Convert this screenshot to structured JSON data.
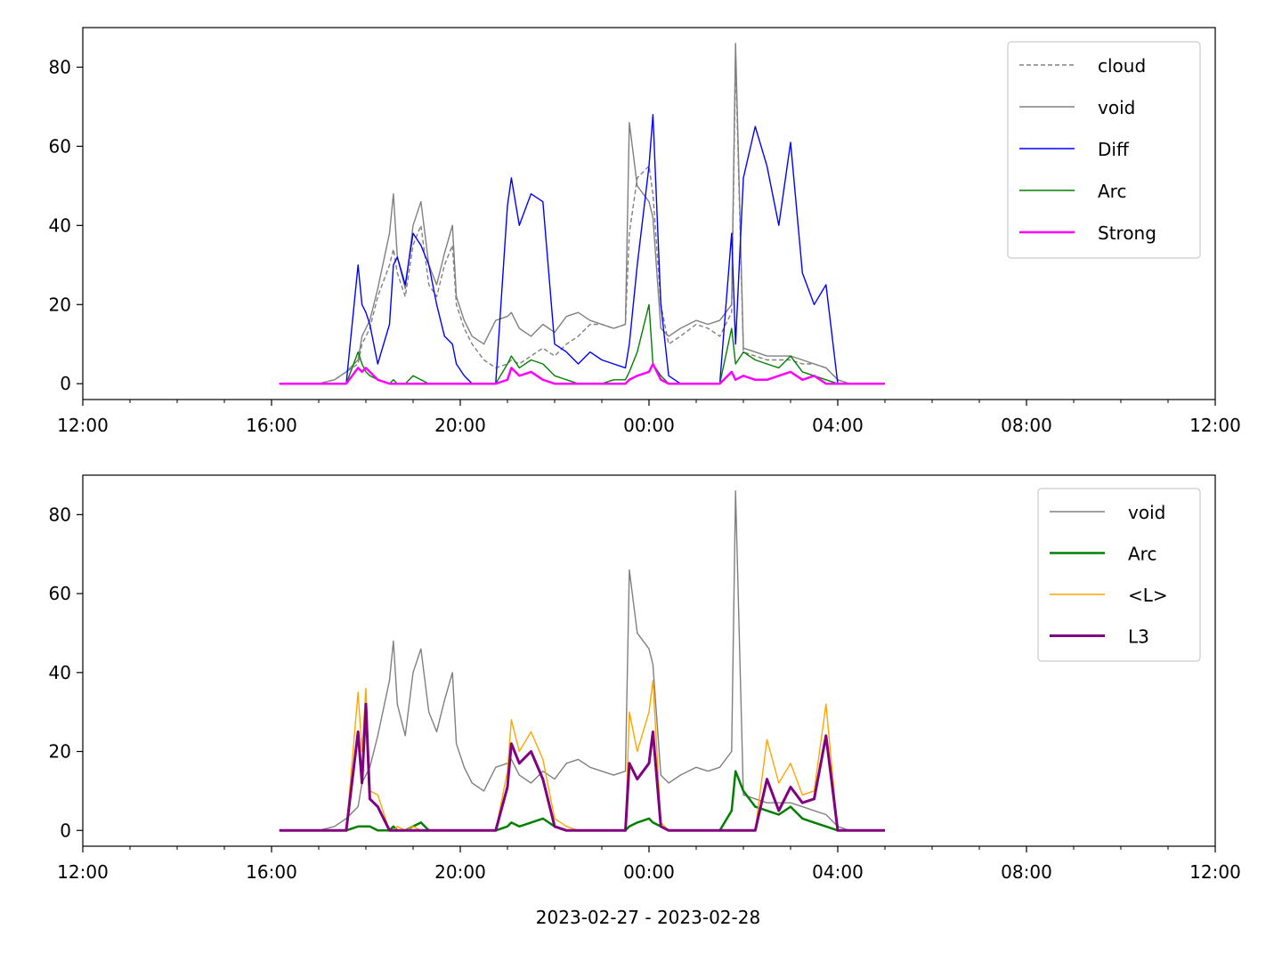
{
  "figure": {
    "xlabel": "2023-02-27 - 2023-02-28"
  },
  "chart_data": [
    {
      "type": "line",
      "x_unit": "time of day (2023-02-27 12:00 to 2023-02-28 12:00)",
      "xlim": [
        "12:00",
        "12:00"
      ],
      "xticks": [
        "12:00",
        "16:00",
        "20:00",
        "00:00",
        "04:00",
        "08:00",
        "12:00"
      ],
      "ylim": [
        -4,
        90
      ],
      "yticks": [
        "0",
        "20",
        "40",
        "60",
        "80"
      ],
      "legend_position": "top-right",
      "x": [
        "16:10",
        "17:00",
        "17:20",
        "17:35",
        "17:50",
        "17:55",
        "18:00",
        "18:05",
        "18:15",
        "18:30",
        "18:35",
        "18:40",
        "18:50",
        "19:00",
        "19:10",
        "19:20",
        "19:30",
        "19:40",
        "19:50",
        "19:55",
        "20:05",
        "20:15",
        "20:30",
        "20:45",
        "21:00",
        "21:05",
        "21:15",
        "21:30",
        "21:45",
        "22:00",
        "22:15",
        "22:30",
        "22:45",
        "23:00",
        "23:15",
        "23:30",
        "23:35",
        "23:45",
        "00:00",
        "00:05",
        "00:15",
        "00:25",
        "00:40",
        "01:00",
        "01:15",
        "01:30",
        "01:45",
        "01:50",
        "02:00",
        "02:15",
        "02:30",
        "02:45",
        "03:00",
        "03:15",
        "03:30",
        "03:45",
        "04:00",
        "04:15",
        "05:00"
      ],
      "series": [
        {
          "name": "cloud",
          "color": "#808080",
          "style": "dashed",
          "values": [
            0,
            0,
            1,
            3,
            5,
            10,
            12,
            14,
            22,
            30,
            34,
            28,
            22,
            35,
            40,
            25,
            22,
            30,
            35,
            20,
            14,
            10,
            6,
            4,
            5,
            6,
            5,
            7,
            9,
            7,
            10,
            12,
            15,
            15,
            14,
            15,
            38,
            52,
            55,
            48,
            20,
            10,
            12,
            15,
            14,
            12,
            18,
            82,
            8,
            7,
            6,
            6,
            6,
            5,
            5,
            4,
            1,
            0,
            0
          ]
        },
        {
          "name": "void",
          "color": "#808080",
          "style": "solid",
          "values": [
            0,
            0,
            1,
            3,
            6,
            12,
            14,
            16,
            24,
            38,
            48,
            32,
            24,
            40,
            46,
            30,
            25,
            33,
            40,
            22,
            16,
            12,
            10,
            16,
            17,
            18,
            14,
            12,
            15,
            13,
            17,
            18,
            16,
            15,
            14,
            15,
            66,
            50,
            46,
            42,
            14,
            12,
            14,
            16,
            15,
            16,
            20,
            86,
            9,
            8,
            7,
            7,
            7,
            6,
            5,
            4,
            1,
            0,
            0
          ]
        },
        {
          "name": "Diff",
          "color": "#0000ff",
          "style": "solid",
          "values": [
            0,
            0,
            0,
            0,
            30,
            20,
            18,
            15,
            5,
            15,
            30,
            32,
            25,
            38,
            35,
            30,
            20,
            12,
            10,
            5,
            2,
            0,
            0,
            0,
            45,
            52,
            40,
            48,
            46,
            10,
            8,
            5,
            8,
            6,
            5,
            4,
            10,
            30,
            55,
            68,
            20,
            2,
            0,
            0,
            0,
            0,
            38,
            10,
            52,
            65,
            55,
            40,
            61,
            28,
            20,
            25,
            0,
            0,
            0
          ]
        },
        {
          "name": "Arc",
          "color": "#008000",
          "style": "solid",
          "values": [
            0,
            0,
            0,
            0,
            8,
            5,
            3,
            2,
            1,
            0,
            1,
            0,
            0,
            2,
            1,
            0,
            0,
            0,
            0,
            0,
            0,
            0,
            0,
            0,
            5,
            7,
            4,
            6,
            5,
            2,
            1,
            0,
            0,
            0,
            1,
            1,
            3,
            8,
            20,
            5,
            2,
            0,
            0,
            0,
            0,
            0,
            14,
            5,
            8,
            6,
            5,
            4,
            7,
            3,
            2,
            1,
            0,
            0,
            0
          ]
        },
        {
          "name": "Strong",
          "color": "#ff00ff",
          "style": "solid",
          "width": 2.5,
          "values": [
            0,
            0,
            0,
            0,
            4,
            3,
            4,
            3,
            1,
            0,
            0,
            0,
            0,
            0,
            0,
            0,
            0,
            0,
            0,
            0,
            0,
            0,
            0,
            0,
            1,
            4,
            2,
            3,
            1,
            0,
            0,
            0,
            0,
            0,
            0,
            0,
            1,
            2,
            3,
            5,
            1,
            0,
            0,
            0,
            0,
            0,
            3,
            1,
            2,
            1,
            1,
            2,
            3,
            1,
            2,
            0,
            0,
            0,
            0
          ]
        }
      ]
    },
    {
      "type": "line",
      "x_unit": "time of day (2023-02-27 12:00 to 2023-02-28 12:00)",
      "xlim": [
        "12:00",
        "12:00"
      ],
      "xticks": [
        "12:00",
        "16:00",
        "20:00",
        "00:00",
        "04:00",
        "08:00",
        "12:00"
      ],
      "ylim": [
        -4,
        90
      ],
      "yticks": [
        "0",
        "20",
        "40",
        "60",
        "80"
      ],
      "legend_position": "top-right",
      "x": [
        "16:10",
        "17:00",
        "17:20",
        "17:35",
        "17:50",
        "17:55",
        "18:00",
        "18:05",
        "18:15",
        "18:30",
        "18:35",
        "18:40",
        "18:50",
        "19:00",
        "19:10",
        "19:20",
        "19:30",
        "19:40",
        "19:50",
        "19:55",
        "20:05",
        "20:15",
        "20:30",
        "20:45",
        "21:00",
        "21:05",
        "21:15",
        "21:30",
        "21:45",
        "22:00",
        "22:15",
        "22:30",
        "22:45",
        "23:00",
        "23:15",
        "23:30",
        "23:35",
        "23:45",
        "00:00",
        "00:05",
        "00:15",
        "00:25",
        "00:40",
        "01:00",
        "01:15",
        "01:30",
        "01:45",
        "01:50",
        "02:00",
        "02:15",
        "02:30",
        "02:45",
        "03:00",
        "03:15",
        "03:30",
        "03:45",
        "04:00",
        "04:15",
        "05:00"
      ],
      "series": [
        {
          "name": "void",
          "color": "#808080",
          "width": 1.4,
          "values": [
            0,
            0,
            1,
            3,
            6,
            12,
            14,
            16,
            24,
            38,
            48,
            32,
            24,
            40,
            46,
            30,
            25,
            33,
            40,
            22,
            16,
            12,
            10,
            16,
            17,
            18,
            14,
            12,
            15,
            13,
            17,
            18,
            16,
            15,
            14,
            15,
            66,
            50,
            46,
            42,
            14,
            12,
            14,
            16,
            15,
            16,
            20,
            86,
            9,
            8,
            7,
            7,
            7,
            6,
            5,
            4,
            1,
            0,
            0
          ]
        },
        {
          "name": "Arc",
          "color": "#008000",
          "width": 2.5,
          "values": [
            0,
            0,
            0,
            0,
            1,
            1,
            1,
            1,
            0,
            0,
            1,
            0,
            0,
            1,
            2,
            0,
            0,
            0,
            0,
            0,
            0,
            0,
            0,
            0,
            1,
            2,
            1,
            2,
            3,
            1,
            0,
            0,
            0,
            0,
            0,
            0,
            1,
            2,
            3,
            2,
            1,
            0,
            0,
            0,
            0,
            0,
            5,
            15,
            10,
            6,
            5,
            4,
            6,
            3,
            2,
            1,
            0,
            0,
            0
          ]
        },
        {
          "name": "<L>",
          "color": "#ffa500",
          "width": 1.4,
          "values": [
            0,
            0,
            0,
            0,
            35,
            20,
            36,
            10,
            9,
            0,
            0,
            1,
            0,
            1,
            0,
            0,
            0,
            0,
            0,
            0,
            0,
            0,
            0,
            0,
            15,
            28,
            20,
            25,
            18,
            3,
            1,
            0,
            0,
            0,
            0,
            0,
            30,
            20,
            30,
            38,
            2,
            0,
            0,
            0,
            0,
            0,
            0,
            0,
            0,
            0,
            23,
            12,
            17,
            9,
            10,
            32,
            0,
            0,
            0
          ]
        },
        {
          "name": "L3",
          "color": "#800080",
          "width": 3,
          "values": [
            0,
            0,
            0,
            0,
            25,
            12,
            32,
            8,
            6,
            0,
            0,
            0,
            0,
            0,
            0,
            0,
            0,
            0,
            0,
            0,
            0,
            0,
            0,
            0,
            11,
            22,
            17,
            20,
            13,
            1,
            0,
            0,
            0,
            0,
            0,
            0,
            17,
            13,
            17,
            25,
            1,
            0,
            0,
            0,
            0,
            0,
            0,
            0,
            0,
            0,
            13,
            5,
            11,
            7,
            8,
            24,
            0,
            0,
            0
          ]
        }
      ]
    }
  ]
}
